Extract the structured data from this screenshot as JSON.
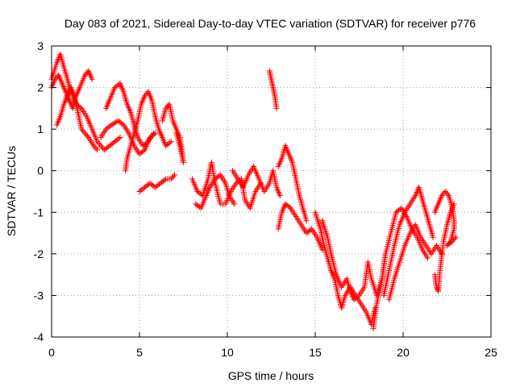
{
  "chart_data": {
    "type": "scatter",
    "title": "Day 083 of 2021, Sidereal Day-to-day VTEC variation (SDTVAR) for receiver p776",
    "xlabel": "GPS time / hours",
    "ylabel": "SDTVAR / TECUs",
    "xlim": [
      0,
      25
    ],
    "ylim": [
      -4,
      3
    ],
    "xticks": [
      "0",
      "5",
      "10",
      "15",
      "20",
      "25"
    ],
    "yticks": [
      "3",
      "2",
      "1",
      "0",
      "-1",
      "-2",
      "-3",
      "-4"
    ],
    "grid": true,
    "marker": "+",
    "color": "#ff0000",
    "series": [
      {
        "name": "s1",
        "points": [
          [
            0.0,
            2.2
          ],
          [
            0.3,
            2.6
          ],
          [
            0.5,
            2.8
          ],
          [
            0.7,
            2.5
          ],
          [
            0.9,
            2.2
          ],
          [
            1.1,
            1.9
          ],
          [
            1.4,
            1.6
          ],
          [
            1.7,
            1.5
          ],
          [
            2.0,
            1.3
          ],
          [
            2.3,
            1.0
          ],
          [
            2.6,
            0.7
          ],
          [
            3.0,
            0.5
          ],
          [
            3.3,
            0.6
          ],
          [
            3.6,
            0.7
          ],
          [
            3.9,
            0.8
          ]
        ]
      },
      {
        "name": "s2",
        "points": [
          [
            0.0,
            2.0
          ],
          [
            0.2,
            2.2
          ],
          [
            0.4,
            2.3
          ],
          [
            0.6,
            2.1
          ],
          [
            0.8,
            1.9
          ],
          [
            1.0,
            1.7
          ],
          [
            1.2,
            1.5
          ],
          [
            1.4,
            1.8
          ],
          [
            1.6,
            2.0
          ],
          [
            1.9,
            2.3
          ],
          [
            2.1,
            2.4
          ],
          [
            2.3,
            2.2
          ]
        ]
      },
      {
        "name": "s3",
        "points": [
          [
            0.3,
            1.1
          ],
          [
            0.5,
            1.3
          ],
          [
            0.7,
            1.6
          ],
          [
            0.9,
            1.8
          ],
          [
            1.1,
            2.0
          ],
          [
            1.3,
            1.8
          ],
          [
            1.5,
            1.4
          ],
          [
            1.7,
            1.0
          ],
          [
            1.9,
            0.9
          ],
          [
            2.1,
            0.8
          ],
          [
            2.4,
            0.6
          ],
          [
            2.6,
            0.5
          ]
        ]
      },
      {
        "name": "s4",
        "points": [
          [
            3.1,
            1.5
          ],
          [
            3.3,
            1.7
          ],
          [
            3.6,
            2.0
          ],
          [
            3.9,
            2.1
          ],
          [
            4.1,
            1.9
          ],
          [
            4.3,
            1.6
          ],
          [
            4.5,
            1.4
          ],
          [
            4.7,
            1.1
          ],
          [
            4.9,
            0.8
          ],
          [
            5.2,
            0.6
          ],
          [
            5.5,
            0.7
          ],
          [
            5.8,
            0.9
          ]
        ]
      },
      {
        "name": "s5",
        "points": [
          [
            2.8,
            0.8
          ],
          [
            3.1,
            1.0
          ],
          [
            3.4,
            1.1
          ],
          [
            3.8,
            1.2
          ],
          [
            4.1,
            1.1
          ],
          [
            4.4,
            0.9
          ],
          [
            4.7,
            0.6
          ],
          [
            5.0,
            0.4
          ],
          [
            5.3,
            0.5
          ],
          [
            5.6,
            0.8
          ],
          [
            5.9,
            0.9
          ]
        ]
      },
      {
        "name": "s6",
        "points": [
          [
            4.2,
            0.0
          ],
          [
            4.3,
            0.3
          ],
          [
            4.5,
            0.6
          ],
          [
            4.7,
            0.9
          ],
          [
            4.9,
            1.2
          ],
          [
            5.1,
            1.6
          ],
          [
            5.3,
            1.8
          ],
          [
            5.5,
            1.9
          ],
          [
            5.7,
            1.7
          ],
          [
            5.9,
            1.3
          ],
          [
            6.1,
            1.0
          ],
          [
            6.3,
            0.8
          ],
          [
            6.5,
            0.6
          ],
          [
            6.8,
            0.7
          ]
        ]
      },
      {
        "name": "s7",
        "points": [
          [
            5.0,
            -0.5
          ],
          [
            5.3,
            -0.4
          ],
          [
            5.6,
            -0.3
          ],
          [
            5.9,
            -0.4
          ],
          [
            6.2,
            -0.3
          ],
          [
            6.5,
            -0.2
          ],
          [
            6.8,
            -0.2
          ],
          [
            7.0,
            -0.1
          ]
        ]
      },
      {
        "name": "s8",
        "points": [
          [
            6.3,
            1.2
          ],
          [
            6.5,
            1.5
          ],
          [
            6.7,
            1.6
          ],
          [
            6.9,
            1.2
          ],
          [
            7.1,
            1.0
          ],
          [
            7.3,
            0.8
          ],
          [
            7.4,
            0.5
          ],
          [
            7.5,
            0.2
          ],
          [
            7.3,
            0.6
          ],
          [
            7.1,
            0.9
          ]
        ]
      },
      {
        "name": "s9",
        "points": [
          [
            8.0,
            -0.2
          ],
          [
            8.3,
            -0.5
          ],
          [
            8.6,
            -0.6
          ],
          [
            8.9,
            -0.2
          ],
          [
            9.1,
            0.2
          ],
          [
            9.3,
            -0.3
          ],
          [
            9.6,
            -0.8
          ],
          [
            9.9,
            -0.8
          ],
          [
            10.2,
            -0.5
          ],
          [
            10.5,
            -0.3
          ],
          [
            10.8,
            -0.2
          ],
          [
            11.0,
            -0.7
          ],
          [
            11.3,
            -0.9
          ],
          [
            11.6,
            -0.5
          ],
          [
            11.9,
            -0.3
          ]
        ]
      },
      {
        "name": "s10",
        "points": [
          [
            8.2,
            -0.8
          ],
          [
            8.5,
            -0.9
          ],
          [
            8.8,
            -0.6
          ],
          [
            9.0,
            -0.4
          ],
          [
            9.3,
            -0.2
          ],
          [
            9.6,
            -0.1
          ],
          [
            9.9,
            -0.3
          ],
          [
            10.1,
            -0.6
          ],
          [
            10.4,
            -0.8
          ]
        ]
      },
      {
        "name": "s11",
        "points": [
          [
            10.3,
            0.0
          ],
          [
            10.6,
            -0.2
          ],
          [
            10.9,
            -0.4
          ],
          [
            11.2,
            -0.1
          ],
          [
            11.5,
            0.1
          ],
          [
            11.8,
            -0.2
          ],
          [
            12.1,
            -0.5
          ],
          [
            12.4,
            -0.3
          ],
          [
            12.6,
            0.0
          ],
          [
            12.8,
            -0.4
          ],
          [
            13.0,
            -0.6
          ]
        ]
      },
      {
        "name": "s12",
        "points": [
          [
            12.4,
            2.4
          ],
          [
            12.5,
            2.2
          ],
          [
            12.6,
            2.0
          ],
          [
            12.7,
            1.8
          ],
          [
            12.8,
            1.5
          ]
        ]
      },
      {
        "name": "s13",
        "points": [
          [
            12.9,
            0.1
          ],
          [
            13.1,
            0.3
          ],
          [
            13.3,
            0.6
          ],
          [
            13.5,
            0.4
          ],
          [
            13.7,
            0.2
          ],
          [
            13.9,
            -0.2
          ],
          [
            14.1,
            -0.6
          ],
          [
            14.3,
            -0.9
          ],
          [
            14.5,
            -1.2
          ]
        ]
      },
      {
        "name": "s14",
        "points": [
          [
            12.9,
            -1.4
          ],
          [
            13.1,
            -1.0
          ],
          [
            13.3,
            -0.8
          ],
          [
            13.6,
            -0.9
          ],
          [
            13.9,
            -1.1
          ],
          [
            14.2,
            -1.3
          ],
          [
            14.5,
            -1.5
          ],
          [
            14.8,
            -1.4
          ],
          [
            15.1,
            -1.6
          ],
          [
            15.4,
            -1.9
          ]
        ]
      },
      {
        "name": "s15",
        "points": [
          [
            15.0,
            -1.0
          ],
          [
            15.3,
            -1.4
          ],
          [
            15.5,
            -1.8
          ],
          [
            15.7,
            -2.1
          ],
          [
            15.9,
            -2.4
          ],
          [
            16.1,
            -2.6
          ],
          [
            16.3,
            -3.0
          ],
          [
            16.5,
            -3.3
          ],
          [
            16.7,
            -3.0
          ],
          [
            17.0,
            -2.8
          ],
          [
            17.3,
            -3.0
          ],
          [
            17.6,
            -3.2
          ],
          [
            17.9,
            -3.4
          ],
          [
            18.2,
            -3.7
          ],
          [
            18.4,
            -3.3
          ]
        ]
      },
      {
        "name": "s16",
        "points": [
          [
            15.4,
            -1.2
          ],
          [
            15.7,
            -1.6
          ],
          [
            15.9,
            -2.0
          ],
          [
            16.2,
            -2.5
          ],
          [
            16.5,
            -2.8
          ],
          [
            16.8,
            -2.6
          ],
          [
            17.0,
            -2.9
          ],
          [
            17.2,
            -3.1
          ],
          [
            17.5,
            -3.0
          ],
          [
            17.8,
            -2.8
          ],
          [
            18.0,
            -2.2
          ],
          [
            18.2,
            -2.6
          ],
          [
            18.5,
            -3.0
          ],
          [
            18.8,
            -2.6
          ],
          [
            19.0,
            -2.0
          ]
        ]
      },
      {
        "name": "s17",
        "points": [
          [
            18.3,
            -3.8
          ],
          [
            18.5,
            -3.2
          ],
          [
            18.8,
            -2.6
          ],
          [
            19.0,
            -2.0
          ],
          [
            19.3,
            -1.5
          ],
          [
            19.6,
            -1.0
          ],
          [
            19.9,
            -0.9
          ],
          [
            20.2,
            -1.1
          ],
          [
            20.5,
            -1.4
          ],
          [
            20.8,
            -1.6
          ],
          [
            21.1,
            -1.9
          ],
          [
            21.4,
            -2.1
          ]
        ]
      },
      {
        "name": "s18",
        "points": [
          [
            18.9,
            -3.0
          ],
          [
            19.2,
            -2.4
          ],
          [
            19.5,
            -1.8
          ],
          [
            19.8,
            -1.3
          ],
          [
            20.1,
            -1.0
          ],
          [
            20.4,
            -0.8
          ],
          [
            20.7,
            -0.6
          ],
          [
            20.9,
            -0.4
          ],
          [
            21.1,
            -0.7
          ],
          [
            21.3,
            -1.0
          ],
          [
            21.5,
            -1.3
          ],
          [
            21.7,
            -1.6
          ]
        ]
      },
      {
        "name": "s19",
        "points": [
          [
            19.2,
            -3.1
          ],
          [
            19.5,
            -2.6
          ],
          [
            19.8,
            -2.2
          ],
          [
            20.1,
            -1.8
          ],
          [
            20.4,
            -1.5
          ],
          [
            20.7,
            -1.3
          ],
          [
            21.0,
            -1.6
          ],
          [
            21.3,
            -1.8
          ],
          [
            21.6,
            -2.0
          ],
          [
            21.9,
            -1.8
          ],
          [
            22.2,
            -2.0
          ]
        ]
      },
      {
        "name": "s20",
        "points": [
          [
            21.8,
            -2.5
          ],
          [
            21.9,
            -2.8
          ],
          [
            22.0,
            -2.9
          ],
          [
            22.1,
            -2.4
          ],
          [
            22.3,
            -1.7
          ],
          [
            22.5,
            -1.3
          ],
          [
            22.7,
            -1.0
          ],
          [
            22.9,
            -0.8
          ]
        ]
      },
      {
        "name": "s21",
        "points": [
          [
            21.8,
            -1.0
          ],
          [
            22.0,
            -0.8
          ],
          [
            22.2,
            -0.6
          ],
          [
            22.4,
            -0.5
          ],
          [
            22.6,
            -0.6
          ],
          [
            22.8,
            -0.9
          ],
          [
            22.9,
            -1.2
          ],
          [
            22.9,
            -1.4
          ],
          [
            22.7,
            -1.7
          ],
          [
            22.5,
            -1.8
          ],
          [
            22.8,
            -1.7
          ],
          [
            23.0,
            -1.6
          ]
        ]
      }
    ]
  }
}
